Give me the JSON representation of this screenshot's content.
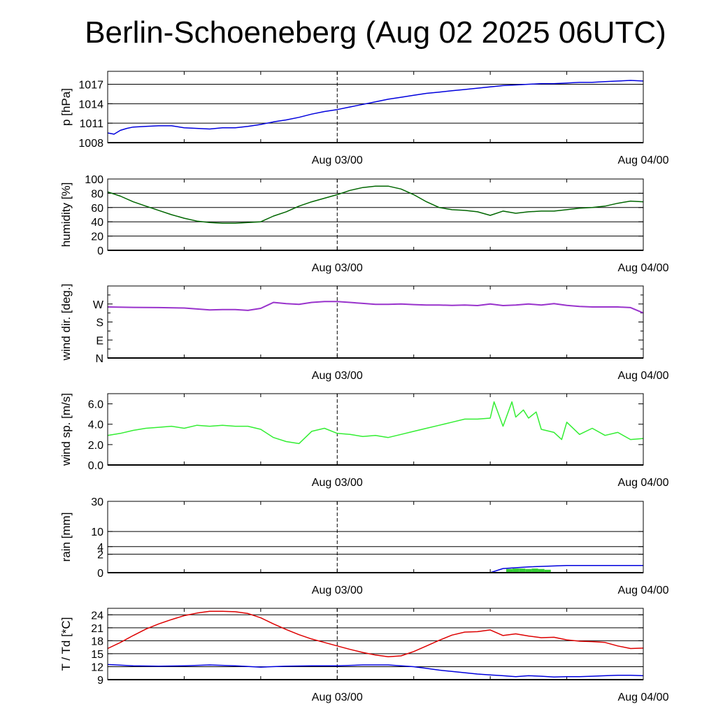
{
  "page": {
    "title": "Berlin-Schoeneberg (Aug 02 2025 06UTC)"
  },
  "chart_data": [
    {
      "id": "pressure",
      "type": "line",
      "ylabel": "p [hPa]",
      "x_range_hours": [
        0,
        42
      ],
      "ylim": [
        1008,
        1019
      ],
      "yticks": [
        {
          "v": 1008,
          "label": "1008"
        },
        {
          "v": 1011,
          "label": "1011"
        },
        {
          "v": 1014,
          "label": "1014"
        },
        {
          "v": 1017,
          "label": "1017"
        }
      ],
      "grid_lines": [
        1011,
        1014,
        1017
      ],
      "date_ticks": [
        {
          "h": 18,
          "label": "Aug 03/00"
        },
        {
          "h": 42,
          "label": "Aug 04/00"
        }
      ],
      "series": [
        {
          "color": "#0000dd",
          "x": [
            0,
            0.5,
            1,
            1.5,
            2,
            3,
            4,
            5,
            6,
            7,
            8,
            9,
            10,
            11,
            12,
            13,
            14,
            15,
            16,
            17,
            18,
            19,
            20,
            21,
            22,
            23,
            24,
            25,
            26,
            27,
            28,
            29,
            30,
            31,
            32,
            33,
            34,
            35,
            36,
            37,
            38,
            39,
            40,
            41,
            42
          ],
          "y": [
            1009.5,
            1009.3,
            1009.9,
            1010.2,
            1010.4,
            1010.5,
            1010.6,
            1010.6,
            1010.3,
            1010.2,
            1010.1,
            1010.3,
            1010.3,
            1010.5,
            1010.8,
            1011.2,
            1011.5,
            1011.9,
            1012.4,
            1012.8,
            1013.1,
            1013.5,
            1013.9,
            1014.3,
            1014.7,
            1015.0,
            1015.3,
            1015.6,
            1015.8,
            1016.0,
            1016.2,
            1016.4,
            1016.6,
            1016.8,
            1016.9,
            1017.0,
            1017.1,
            1017.1,
            1017.2,
            1017.3,
            1017.3,
            1017.4,
            1017.5,
            1017.6,
            1017.5
          ]
        }
      ]
    },
    {
      "id": "humidity",
      "type": "line",
      "ylabel": "humidity [%]",
      "x_range_hours": [
        0,
        42
      ],
      "ylim": [
        0,
        100
      ],
      "yticks": [
        {
          "v": 0,
          "label": "0"
        },
        {
          "v": 20,
          "label": "20"
        },
        {
          "v": 40,
          "label": "40"
        },
        {
          "v": 60,
          "label": "60"
        },
        {
          "v": 80,
          "label": "80"
        },
        {
          "v": 100,
          "label": "100"
        }
      ],
      "grid_lines": [
        20,
        40,
        60,
        80
      ],
      "date_ticks": [
        {
          "h": 18,
          "label": "Aug 03/00"
        },
        {
          "h": 42,
          "label": "Aug 04/00"
        }
      ],
      "series": [
        {
          "color": "#006600",
          "x": [
            0,
            1,
            2,
            3,
            4,
            5,
            6,
            7,
            8,
            9,
            10,
            11,
            12,
            13,
            14,
            15,
            16,
            17,
            18,
            19,
            20,
            21,
            22,
            23,
            24,
            25,
            26,
            27,
            28,
            29,
            30,
            31,
            32,
            33,
            34,
            35,
            36,
            37,
            38,
            39,
            40,
            41,
            42
          ],
          "y": [
            82,
            76,
            68,
            62,
            56,
            50,
            45,
            41,
            39,
            38,
            38,
            39,
            40,
            48,
            54,
            62,
            68,
            73,
            78,
            84,
            88,
            90,
            90,
            86,
            78,
            68,
            60,
            57,
            56,
            54,
            49,
            55,
            52,
            54,
            55,
            55,
            57,
            59,
            60,
            62,
            66,
            69,
            68
          ]
        }
      ]
    },
    {
      "id": "wind_direction",
      "type": "line",
      "ylabel": "wind dir. [deg.]",
      "x_range_hours": [
        0,
        42
      ],
      "ylim": [
        0,
        360
      ],
      "yticks": [
        {
          "v": 0,
          "label": "N"
        },
        {
          "v": 90,
          "label": "E"
        },
        {
          "v": 180,
          "label": "S"
        },
        {
          "v": 270,
          "label": "W"
        }
      ],
      "grid_lines": [],
      "date_ticks": [
        {
          "h": 18,
          "label": "Aug 03/00"
        },
        {
          "h": 42,
          "label": "Aug 04/00"
        }
      ],
      "series": [
        {
          "color": "#9933cc",
          "x": [
            0,
            2,
            4,
            6,
            7,
            8,
            9,
            10,
            11,
            12,
            13,
            14,
            15,
            16,
            17,
            18,
            19,
            20,
            21,
            22,
            23,
            24,
            25,
            26,
            27,
            28,
            29,
            30,
            31,
            32,
            33,
            34,
            35,
            36,
            37,
            38,
            39,
            40,
            41,
            42
          ],
          "y": [
            255,
            253,
            252,
            250,
            245,
            240,
            242,
            242,
            238,
            248,
            278,
            272,
            268,
            278,
            282,
            282,
            278,
            273,
            268,
            268,
            270,
            267,
            265,
            265,
            263,
            265,
            262,
            270,
            262,
            265,
            270,
            265,
            272,
            263,
            258,
            255,
            255,
            255,
            252,
            225
          ]
        }
      ]
    },
    {
      "id": "wind_speed",
      "type": "line",
      "ylabel": "wind sp. [m/s]",
      "x_range_hours": [
        0,
        42
      ],
      "ylim": [
        0,
        7
      ],
      "yticks": [
        {
          "v": 0,
          "label": "0.0"
        },
        {
          "v": 2,
          "label": "2.0"
        },
        {
          "v": 4,
          "label": "4.0"
        },
        {
          "v": 6,
          "label": "6.0"
        }
      ],
      "grid_lines": [],
      "date_ticks": [
        {
          "h": 18,
          "label": "Aug 03/00"
        },
        {
          "h": 42,
          "label": "Aug 04/00"
        }
      ],
      "series": [
        {
          "color": "#33ee33",
          "x": [
            0,
            1,
            2,
            3,
            4,
            5,
            6,
            7,
            8,
            9,
            10,
            11,
            12,
            13,
            14,
            15,
            16,
            17,
            18,
            19,
            20,
            21,
            22,
            23,
            24,
            25,
            26,
            27,
            28,
            29,
            30,
            30.3,
            31,
            31.7,
            32,
            32.6,
            33,
            33.6,
            34,
            35,
            35.6,
            36,
            37,
            38,
            39,
            40,
            41,
            42
          ],
          "y": [
            2.9,
            3.1,
            3.4,
            3.6,
            3.7,
            3.8,
            3.6,
            3.9,
            3.8,
            3.9,
            3.8,
            3.8,
            3.5,
            2.7,
            2.3,
            2.1,
            3.3,
            3.6,
            3.1,
            3.0,
            2.8,
            2.9,
            2.7,
            3.0,
            3.3,
            3.6,
            3.9,
            4.2,
            4.5,
            4.5,
            4.6,
            6.2,
            3.8,
            6.2,
            4.7,
            5.4,
            4.6,
            5.2,
            3.5,
            3.2,
            2.5,
            4.2,
            3.0,
            3.6,
            2.9,
            3.2,
            2.5,
            2.6
          ]
        }
      ]
    },
    {
      "id": "rain",
      "type": "area",
      "ylabel": "rain [mm]",
      "x_range_hours": [
        0,
        42
      ],
      "scale": "sqrt",
      "ylim": [
        0,
        30
      ],
      "yticks": [
        {
          "v": 0,
          "label": "0"
        },
        {
          "v": 2,
          "label": "2"
        },
        {
          "v": 4,
          "label": "4"
        },
        {
          "v": 10,
          "label": "10"
        },
        {
          "v": 30,
          "label": "30"
        }
      ],
      "grid_lines": [
        2,
        4,
        10,
        30
      ],
      "date_ticks": [
        {
          "h": 18,
          "label": "Aug 03/00"
        },
        {
          "h": 42,
          "label": "Aug 04/00"
        }
      ],
      "series": [
        {
          "color": "#0000dd",
          "kind": "line",
          "x": [
            0,
            30,
            31,
            33,
            36,
            39,
            42
          ],
          "y": [
            0,
            0,
            0.1,
            0.2,
            0.3,
            0.3,
            0.3
          ]
        },
        {
          "color": "#33cc33",
          "kind": "bar",
          "x": [
            31.5,
            32,
            32.5,
            33,
            33.5,
            34,
            34.5
          ],
          "y": [
            0.08,
            0.1,
            0.1,
            0.08,
            0.1,
            0.08,
            0.05
          ]
        }
      ]
    },
    {
      "id": "temperature",
      "type": "line",
      "ylabel": "T / Td [*C]",
      "x_range_hours": [
        0,
        42
      ],
      "ylim": [
        9,
        25.5
      ],
      "yticks": [
        {
          "v": 9,
          "label": "9"
        },
        {
          "v": 12,
          "label": "12"
        },
        {
          "v": 15,
          "label": "15"
        },
        {
          "v": 18,
          "label": "18"
        },
        {
          "v": 21,
          "label": "21"
        },
        {
          "v": 24,
          "label": "24"
        }
      ],
      "grid_lines": [
        12,
        15,
        18,
        21,
        24
      ],
      "date_ticks": [
        {
          "h": 18,
          "label": "Aug 03/00"
        },
        {
          "h": 42,
          "label": "Aug 04/00"
        }
      ],
      "series": [
        {
          "color": "#dd0000",
          "x": [
            0,
            1,
            2,
            3,
            4,
            5,
            6,
            7,
            8,
            9,
            10,
            11,
            12,
            13,
            14,
            15,
            16,
            17,
            18,
            19,
            20,
            21,
            22,
            23,
            24,
            25,
            26,
            27,
            28,
            29,
            30,
            31,
            32,
            33,
            34,
            35,
            36,
            37,
            38,
            39,
            40,
            41,
            42
          ],
          "y": [
            16.2,
            17.6,
            19.2,
            20.7,
            21.9,
            22.9,
            23.8,
            24.4,
            24.8,
            24.8,
            24.7,
            24.3,
            23.3,
            21.9,
            20.6,
            19.4,
            18.4,
            17.6,
            16.8,
            16.0,
            15.3,
            14.7,
            14.3,
            14.5,
            15.5,
            16.8,
            18.1,
            19.3,
            20.0,
            20.1,
            20.5,
            19.2,
            19.6,
            19.1,
            18.7,
            18.8,
            18.2,
            17.9,
            17.8,
            17.6,
            16.8,
            16.2,
            16.3
          ]
        },
        {
          "color": "#0000dd",
          "x": [
            0,
            2,
            4,
            6,
            8,
            10,
            12,
            14,
            16,
            18,
            20,
            22,
            24,
            25,
            26,
            27,
            28,
            29,
            30,
            31,
            32,
            33,
            34,
            35,
            36,
            37,
            38,
            39,
            40,
            41,
            42
          ],
          "y": [
            12.5,
            12.2,
            12.1,
            12.2,
            12.4,
            12.2,
            11.9,
            12.1,
            12.2,
            12.2,
            12.4,
            12.4,
            12.0,
            11.6,
            11.2,
            10.9,
            10.6,
            10.3,
            10.1,
            9.9,
            9.7,
            9.9,
            9.8,
            9.6,
            9.7,
            9.7,
            9.8,
            9.9,
            10.0,
            10.0,
            9.9
          ]
        }
      ]
    }
  ]
}
